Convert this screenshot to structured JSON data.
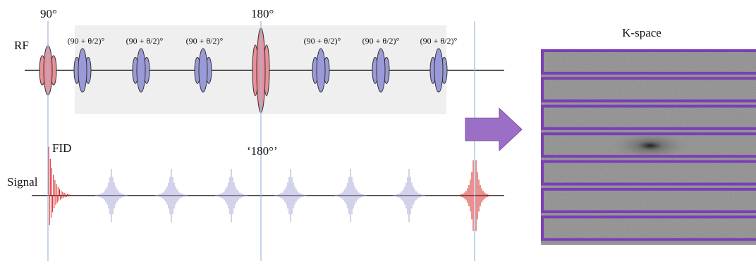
{
  "rf": {
    "label": "RF",
    "pulse_90": "90°",
    "pulse_180": "180°",
    "refocus_labels": [
      "(90 + θ/2)°",
      "(90 + θ/2)°",
      "(90 + θ/2)°",
      "(90 + θ/2)°",
      "(90 + θ/2)°",
      "(90 + θ/2)°"
    ]
  },
  "signal": {
    "label": "Signal",
    "fid": "FID",
    "pseudo_echo": "‘180°’"
  },
  "kspace": {
    "title": "K-space"
  }
}
